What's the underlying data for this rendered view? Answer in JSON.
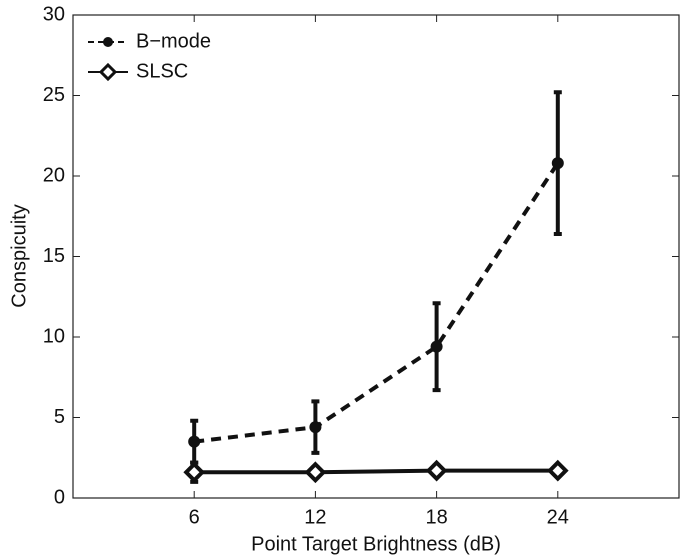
{
  "chart_data": {
    "type": "line",
    "x_label": "Point Target Brightness (dB)",
    "y_label": "Conspicuity",
    "x": [
      6,
      12,
      18,
      24
    ],
    "series": [
      {
        "name": "B−mode",
        "color": "#111111",
        "dash": true,
        "marker": "circle",
        "values": [
          3.5,
          4.4,
          9.4,
          20.8
        ],
        "errors": [
          1.3,
          1.6,
          2.7,
          4.4
        ]
      },
      {
        "name": "SLSC",
        "color": "#111111",
        "dash": false,
        "marker": "diamond",
        "values": [
          1.6,
          1.6,
          1.7,
          1.7
        ],
        "errors": [
          0.6,
          0.3,
          0.3,
          0.2
        ]
      }
    ],
    "xlim": [
      0,
      30
    ],
    "xticks": [
      6,
      12,
      18,
      24
    ],
    "ylim": [
      0,
      30
    ],
    "yticks": [
      0,
      5,
      10,
      15,
      20,
      25,
      30
    ],
    "legend": "upper left"
  }
}
